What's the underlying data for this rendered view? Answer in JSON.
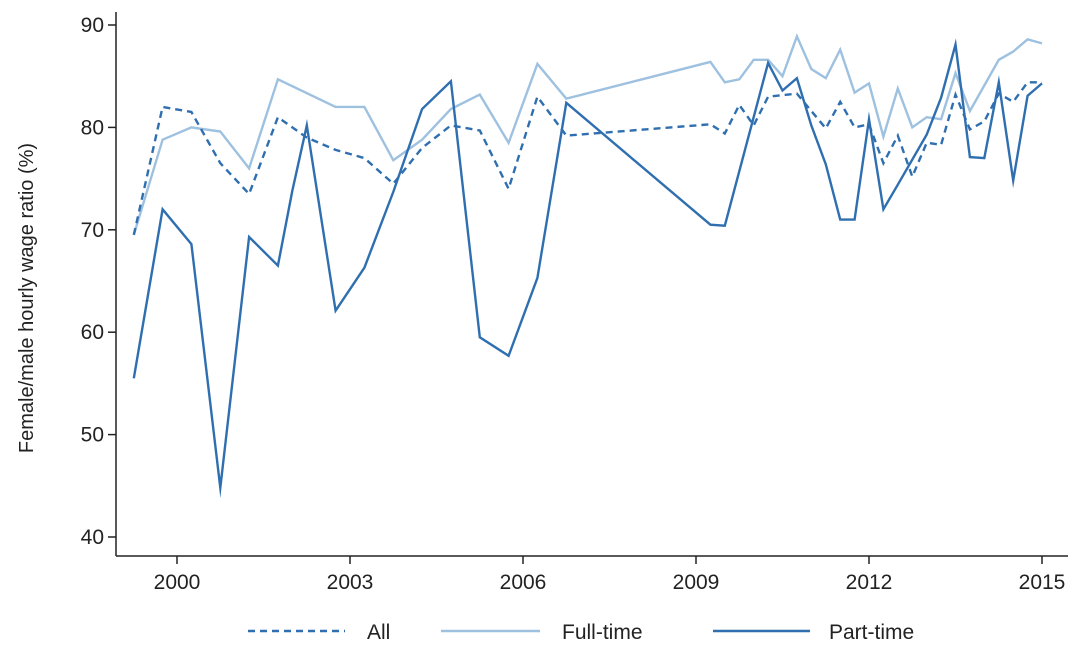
{
  "chart_data": {
    "type": "line",
    "title": "",
    "xlabel": "",
    "ylabel": "Female/male hourly wage ratio (%)",
    "xlim": [
      1999.25,
      2015.2
    ],
    "ylim": [
      38,
      92
    ],
    "x_ticks": [
      2000,
      2003,
      2006,
      2009,
      2012,
      2015
    ],
    "x_tick_labels": [
      "2000",
      "2003",
      "2006",
      "2009",
      "2012",
      "2015"
    ],
    "y_ticks": [
      40,
      50,
      60,
      70,
      80,
      90
    ],
    "y_tick_labels": [
      "40",
      "50",
      "60",
      "70",
      "80",
      "90"
    ],
    "grid": false,
    "legend_position": "bottom",
    "series": [
      {
        "name": "All",
        "color": "#2f6fb0",
        "dash": "dashed",
        "points": [
          [
            1999.25,
            69.5
          ],
          [
            1999.75,
            82.0
          ],
          [
            2000.25,
            81.5
          ],
          [
            2000.75,
            76.5
          ],
          [
            2001.25,
            73.5
          ],
          [
            2001.75,
            81.0
          ],
          [
            2002.25,
            79.0
          ],
          [
            2002.75,
            77.8
          ],
          [
            2003.25,
            77.0
          ],
          [
            2003.75,
            74.5
          ],
          [
            2004.25,
            78.0
          ],
          [
            2004.75,
            80.2
          ],
          [
            2005.25,
            79.7
          ],
          [
            2005.75,
            74.0
          ],
          [
            2006.25,
            83.0
          ],
          [
            2006.75,
            79.2
          ],
          [
            2009.25,
            80.3
          ],
          [
            2009.5,
            79.4
          ],
          [
            2009.75,
            82.2
          ],
          [
            2010.0,
            80.2
          ],
          [
            2010.25,
            83.0
          ],
          [
            2010.75,
            83.3
          ],
          [
            2011.25,
            79.9
          ],
          [
            2011.5,
            82.5
          ],
          [
            2011.75,
            80.0
          ],
          [
            2012.0,
            80.3
          ],
          [
            2012.25,
            76.5
          ],
          [
            2012.5,
            79.2
          ],
          [
            2012.75,
            75.2
          ],
          [
            2013.0,
            78.5
          ],
          [
            2013.25,
            78.3
          ],
          [
            2013.5,
            83.2
          ],
          [
            2013.75,
            79.8
          ],
          [
            2014.0,
            80.6
          ],
          [
            2014.25,
            83.3
          ],
          [
            2014.5,
            82.5
          ],
          [
            2014.75,
            84.4
          ],
          [
            2015.0,
            84.4
          ]
        ]
      },
      {
        "name": "Full-time",
        "color": "#9ec1e0",
        "dash": "solid",
        "points": [
          [
            1999.25,
            69.5
          ],
          [
            1999.75,
            78.8
          ],
          [
            2000.25,
            80.0
          ],
          [
            2000.75,
            79.6
          ],
          [
            2001.25,
            76.0
          ],
          [
            2001.75,
            84.7
          ],
          [
            2002.75,
            82.0
          ],
          [
            2003.25,
            82.0
          ],
          [
            2003.75,
            76.8
          ],
          [
            2004.25,
            78.8
          ],
          [
            2004.75,
            81.8
          ],
          [
            2005.25,
            83.2
          ],
          [
            2005.75,
            78.5
          ],
          [
            2006.25,
            86.2
          ],
          [
            2006.75,
            82.8
          ],
          [
            2009.25,
            86.4
          ],
          [
            2009.5,
            84.4
          ],
          [
            2009.75,
            84.7
          ],
          [
            2010.0,
            86.6
          ],
          [
            2010.25,
            86.6
          ],
          [
            2010.5,
            85.0
          ],
          [
            2010.75,
            88.9
          ],
          [
            2011.0,
            85.7
          ],
          [
            2011.25,
            84.8
          ],
          [
            2011.5,
            87.6
          ],
          [
            2011.75,
            83.4
          ],
          [
            2012.0,
            84.3
          ],
          [
            2012.25,
            79.1
          ],
          [
            2012.5,
            83.8
          ],
          [
            2012.75,
            80.0
          ],
          [
            2013.0,
            81.0
          ],
          [
            2013.25,
            80.8
          ],
          [
            2013.5,
            85.3
          ],
          [
            2013.75,
            81.6
          ],
          [
            2014.25,
            86.6
          ],
          [
            2014.5,
            87.4
          ],
          [
            2014.75,
            88.6
          ],
          [
            2015.0,
            88.2
          ]
        ]
      },
      {
        "name": "Part-time",
        "color": "#2f6fb0",
        "dash": "solid",
        "points": [
          [
            1999.25,
            55.5
          ],
          [
            1999.75,
            72.0
          ],
          [
            2000.25,
            68.6
          ],
          [
            2000.75,
            44.8
          ],
          [
            2001.25,
            69.3
          ],
          [
            2001.75,
            66.5
          ],
          [
            2002.0,
            73.8
          ],
          [
            2002.25,
            80.2
          ],
          [
            2002.75,
            62.1
          ],
          [
            2003.25,
            66.3
          ],
          [
            2003.75,
            73.7
          ],
          [
            2004.25,
            81.8
          ],
          [
            2004.75,
            84.5
          ],
          [
            2005.25,
            59.5
          ],
          [
            2005.75,
            57.7
          ],
          [
            2006.25,
            65.3
          ],
          [
            2006.75,
            82.4
          ],
          [
            2009.25,
            70.5
          ],
          [
            2009.5,
            70.4
          ],
          [
            2010.25,
            86.3
          ],
          [
            2010.5,
            83.6
          ],
          [
            2010.75,
            84.8
          ],
          [
            2011.0,
            80.2
          ],
          [
            2011.25,
            76.4
          ],
          [
            2011.5,
            71.0
          ],
          [
            2011.75,
            71.0
          ],
          [
            2012.0,
            80.8
          ],
          [
            2012.25,
            72.0
          ],
          [
            2012.5,
            74.4
          ],
          [
            2013.0,
            79.3
          ],
          [
            2013.25,
            82.9
          ],
          [
            2013.5,
            88.1
          ],
          [
            2013.75,
            77.1
          ],
          [
            2014.0,
            77.0
          ],
          [
            2014.25,
            84.4
          ],
          [
            2014.5,
            74.8
          ],
          [
            2014.75,
            83.1
          ],
          [
            2015.0,
            84.3
          ]
        ]
      }
    ]
  }
}
